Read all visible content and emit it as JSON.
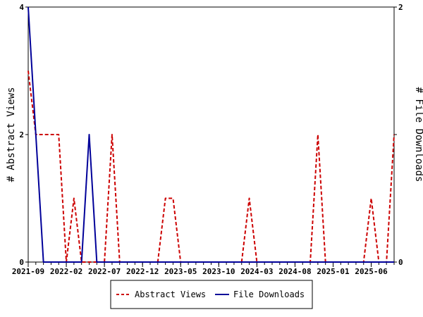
{
  "chart_data": {
    "type": "line",
    "x_labels": [
      "2021-09",
      "2022-02",
      "2022-07",
      "2022-12",
      "2023-05",
      "2023-10",
      "2024-03",
      "2024-08",
      "2025-01",
      "2025-06"
    ],
    "series": [
      {
        "name": "Abstract Views",
        "axis": "left",
        "color": "#cc0000",
        "style": "dashed",
        "values": [
          3,
          2,
          2,
          2,
          2,
          0,
          1,
          0,
          0,
          0,
          0,
          2,
          0,
          0,
          0,
          0,
          0,
          0,
          1,
          1,
          0,
          0,
          0,
          0,
          0,
          0,
          0,
          0,
          0,
          1,
          0,
          0,
          0,
          0,
          0,
          0,
          0,
          0,
          2,
          0,
          0,
          0,
          0,
          0,
          0,
          1,
          0,
          0,
          2
        ]
      },
      {
        "name": "File Downloads",
        "axis": "right",
        "color": "#000099",
        "style": "solid",
        "values": [
          2,
          1,
          0,
          0,
          0,
          0,
          0,
          0,
          1,
          0,
          0,
          0,
          0,
          0,
          0,
          0,
          0,
          0,
          0,
          0,
          0,
          0,
          0,
          0,
          0,
          0,
          0,
          0,
          0,
          0,
          0,
          0,
          0,
          0,
          0,
          0,
          0,
          0,
          0,
          0,
          0,
          0,
          0,
          0,
          0,
          0,
          0,
          0,
          0
        ]
      }
    ],
    "y_left": {
      "label": "# Abstract Views",
      "min": 0,
      "max": 4,
      "ticks": [
        "0",
        "2",
        "4"
      ]
    },
    "y_right": {
      "label": "# File Downloads",
      "min": 0,
      "max": 2,
      "ticks": [
        "0",
        "1",
        "2"
      ]
    },
    "legend_position": "bottom"
  }
}
